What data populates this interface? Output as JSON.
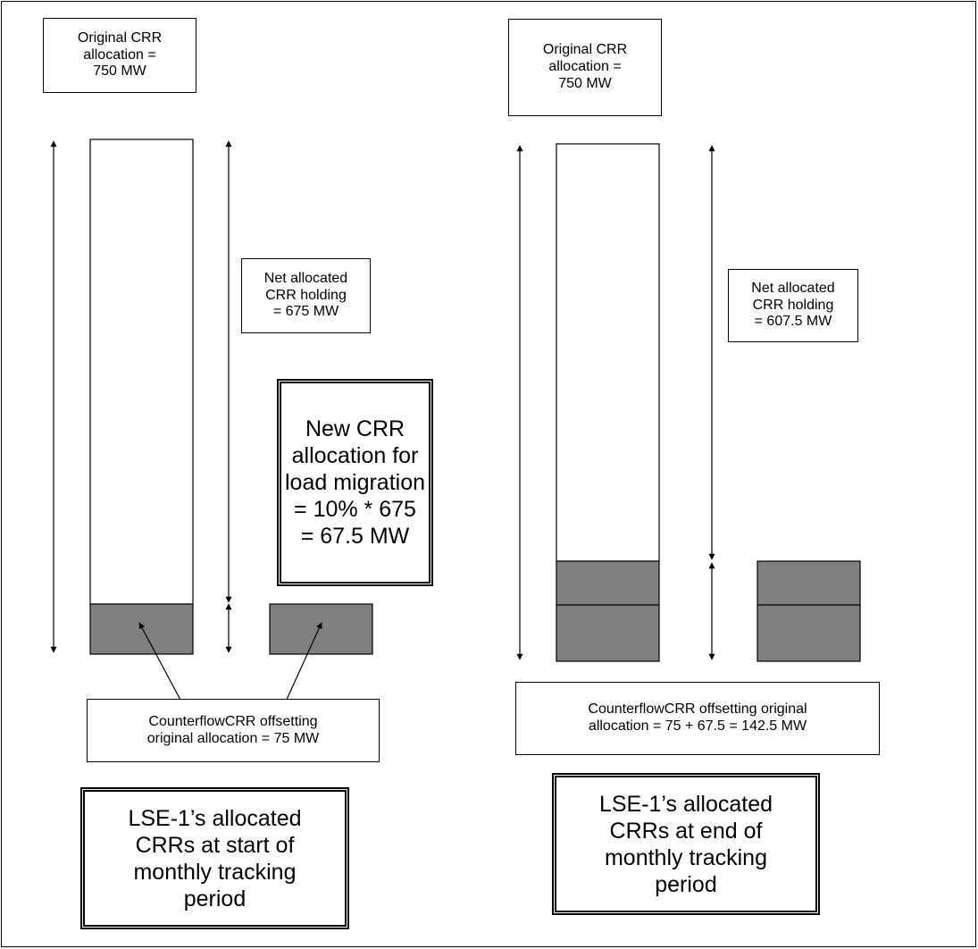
{
  "left_panel": {
    "original_allocation": "Original CRR\nallocation =\n750 MW",
    "net_holding": "Net allocated\nCRR holding\n= 675 MW",
    "new_allocation": "New CRR\nallocation for\nload migration\n= 10% * 675\n= 67.5 MW",
    "counterflow": "CounterflowCRR offsetting\noriginal allocation = 75 MW",
    "title": "LSE-1’s allocated\nCRRs at start of\nmonthly tracking\nperiod"
  },
  "right_panel": {
    "original_allocation": "Original CRR\nallocation =\n750 MW",
    "net_holding": "Net allocated\nCRR holding\n= 607.5 MW",
    "counterflow": "CounterflowCRR offsetting original\nallocation = 75 + 67.5 = 142.5 MW",
    "title": "LSE-1’s allocated\nCRRs at end of\nmonthly tracking\nperiod"
  },
  "colors": {
    "counterflow_fill": "#808080",
    "line": "#000000",
    "background": "#ffffff"
  }
}
